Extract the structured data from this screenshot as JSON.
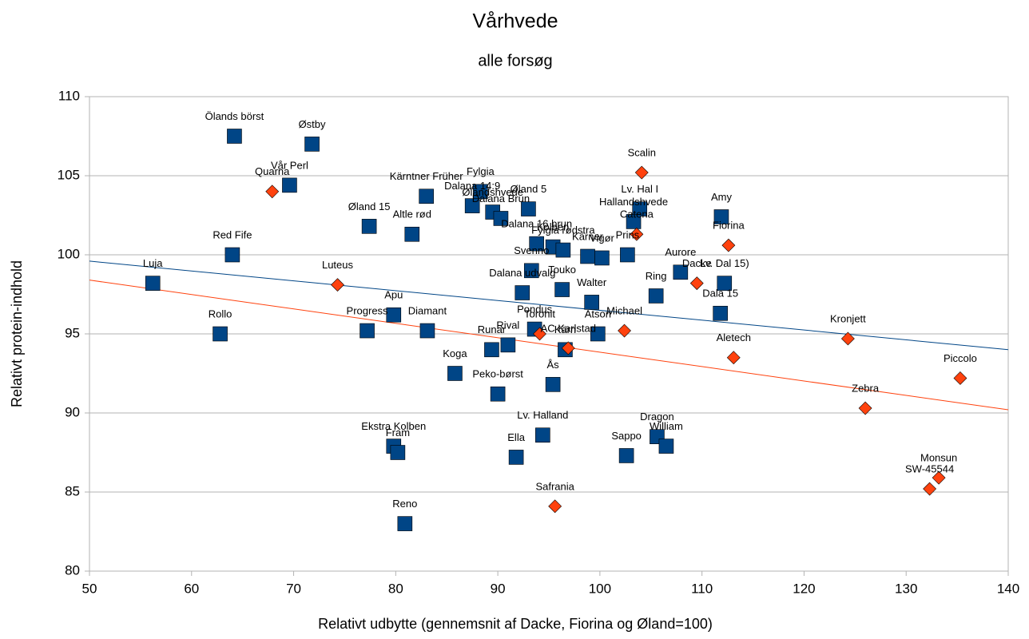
{
  "chart_data": {
    "type": "scatter",
    "title": "Vårhvede",
    "subtitle": "alle forsøg",
    "x_label": "Relativt udbytte (gennemsnit af Dacke, Fiorina og Øland=100)",
    "y_label": "Relativt protein-indhold",
    "xlim": [
      50,
      140
    ],
    "ylim": [
      80,
      110
    ],
    "xticks": [
      50,
      60,
      70,
      80,
      90,
      100,
      110,
      120,
      130,
      140
    ],
    "yticks": [
      80,
      85,
      90,
      95,
      100,
      105,
      110
    ],
    "grid": true,
    "series": [
      {
        "marker": "square",
        "color": "#004586",
        "labels": [
          "Ölands börst",
          "Østby",
          "Vår Perl",
          "Kärntner Früher",
          "Fylgia",
          "Dalana 14:9",
          "Øland 5",
          "Ølandshvede",
          "Dalana Brun",
          "Øland 15",
          "Altle rød",
          "Lv. Hal I",
          "Hallandshvede",
          "Amy",
          "Red Fife",
          "Luja",
          "Dalana 16 brun",
          "Svenno",
          "Kolben",
          "Fylgia rødstra",
          "Kärner",
          "Vigør",
          "Prins",
          "Touko",
          "Dalana udvalg",
          "Walter",
          "Aurore",
          "Lv. Dal 15)",
          "Ring",
          "Dala 15",
          "Rollo",
          "Progress",
          "Apu",
          "Diamant",
          "Pondus",
          "Rival",
          "Runar",
          "Kärn",
          "Atson",
          "Koga",
          "Ås",
          "Peko-børst",
          "Lv. Halland",
          "Ekstra Kolben",
          "Fram",
          "Ella",
          "Sappo",
          "Dragon",
          "William",
          "Reno"
        ],
        "x": [
          64.2,
          71.8,
          69.6,
          83.0,
          88.3,
          87.5,
          93.0,
          89.5,
          90.3,
          77.4,
          81.6,
          103.9,
          103.3,
          111.9,
          64.0,
          56.2,
          93.8,
          93.3,
          95.4,
          96.4,
          98.8,
          100.2,
          102.7,
          96.3,
          92.4,
          99.2,
          107.9,
          112.2,
          105.5,
          111.8,
          62.8,
          77.2,
          79.8,
          83.1,
          93.6,
          91.0,
          89.4,
          96.6,
          99.8,
          85.8,
          95.4,
          90.0,
          94.4,
          79.8,
          80.2,
          91.8,
          102.6,
          105.6,
          106.5,
          80.9
        ],
        "values": [
          107.5,
          107.0,
          104.4,
          103.7,
          104.0,
          103.1,
          102.9,
          102.7,
          102.3,
          101.8,
          101.3,
          102.9,
          102.1,
          102.4,
          100.0,
          98.2,
          100.7,
          99.0,
          100.5,
          100.3,
          99.9,
          99.8,
          100.0,
          97.8,
          97.6,
          97.0,
          98.9,
          98.2,
          97.4,
          96.3,
          95.0,
          95.2,
          96.2,
          95.2,
          95.3,
          94.3,
          94.0,
          94.0,
          95.0,
          92.5,
          91.8,
          91.2,
          88.6,
          87.9,
          87.5,
          87.2,
          87.3,
          88.5,
          87.9,
          83.0
        ],
        "trend": {
          "x": [
            50,
            140
          ],
          "values": [
            99.6,
            94.0
          ]
        }
      },
      {
        "marker": "diamond",
        "color": "#ff420e",
        "labels": [
          "Quarna",
          "Scalin",
          "Catena",
          "Fiorina",
          "Luteus",
          "Dacke",
          "Michael",
          "Toronit",
          "AC Karlstad",
          "Kronjett",
          "Aletech",
          "Piccolo",
          "Zebra",
          "Monsun",
          "SW-45544",
          "Safrania"
        ],
        "x": [
          67.9,
          104.1,
          103.6,
          112.6,
          74.3,
          109.5,
          102.4,
          94.1,
          96.9,
          124.3,
          113.1,
          135.3,
          126.0,
          133.2,
          132.3,
          95.6
        ],
        "values": [
          104.0,
          105.2,
          101.3,
          100.6,
          98.1,
          98.2,
          95.2,
          95.0,
          94.1,
          94.7,
          93.5,
          92.2,
          90.3,
          85.9,
          85.2,
          84.1
        ],
        "trend": {
          "x": [
            50,
            140
          ],
          "values": [
            98.4,
            90.2
          ]
        }
      }
    ]
  }
}
